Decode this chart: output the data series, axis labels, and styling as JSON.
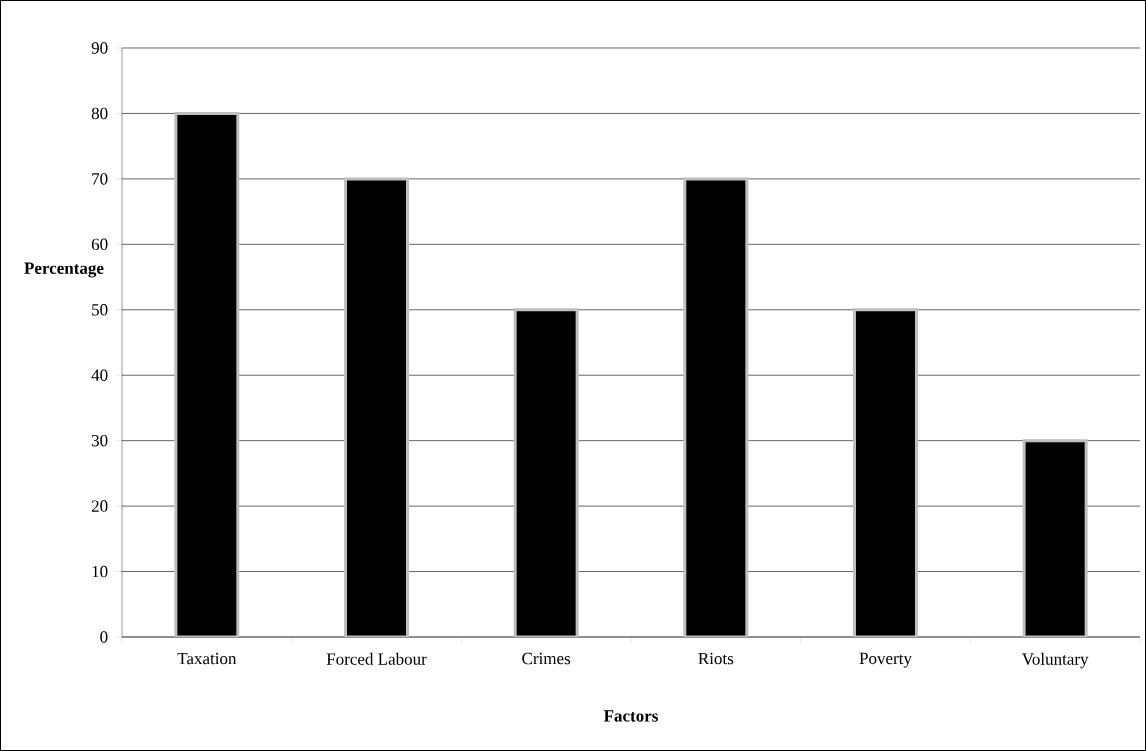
{
  "chart_data": {
    "type": "bar",
    "xlabel": "Factors",
    "ylabel": "Percentage",
    "categories": [
      "Taxation",
      "Forced Labour",
      "Crimes",
      "Riots",
      "Poverty",
      "Voluntary"
    ],
    "values": [
      80,
      70,
      50,
      70,
      50,
      30
    ],
    "color": "#000000",
    "ylim": [
      0,
      90
    ],
    "yticks": [
      0,
      10,
      20,
      30,
      40,
      50,
      60,
      70,
      80,
      90
    ],
    "grid": "y"
  }
}
